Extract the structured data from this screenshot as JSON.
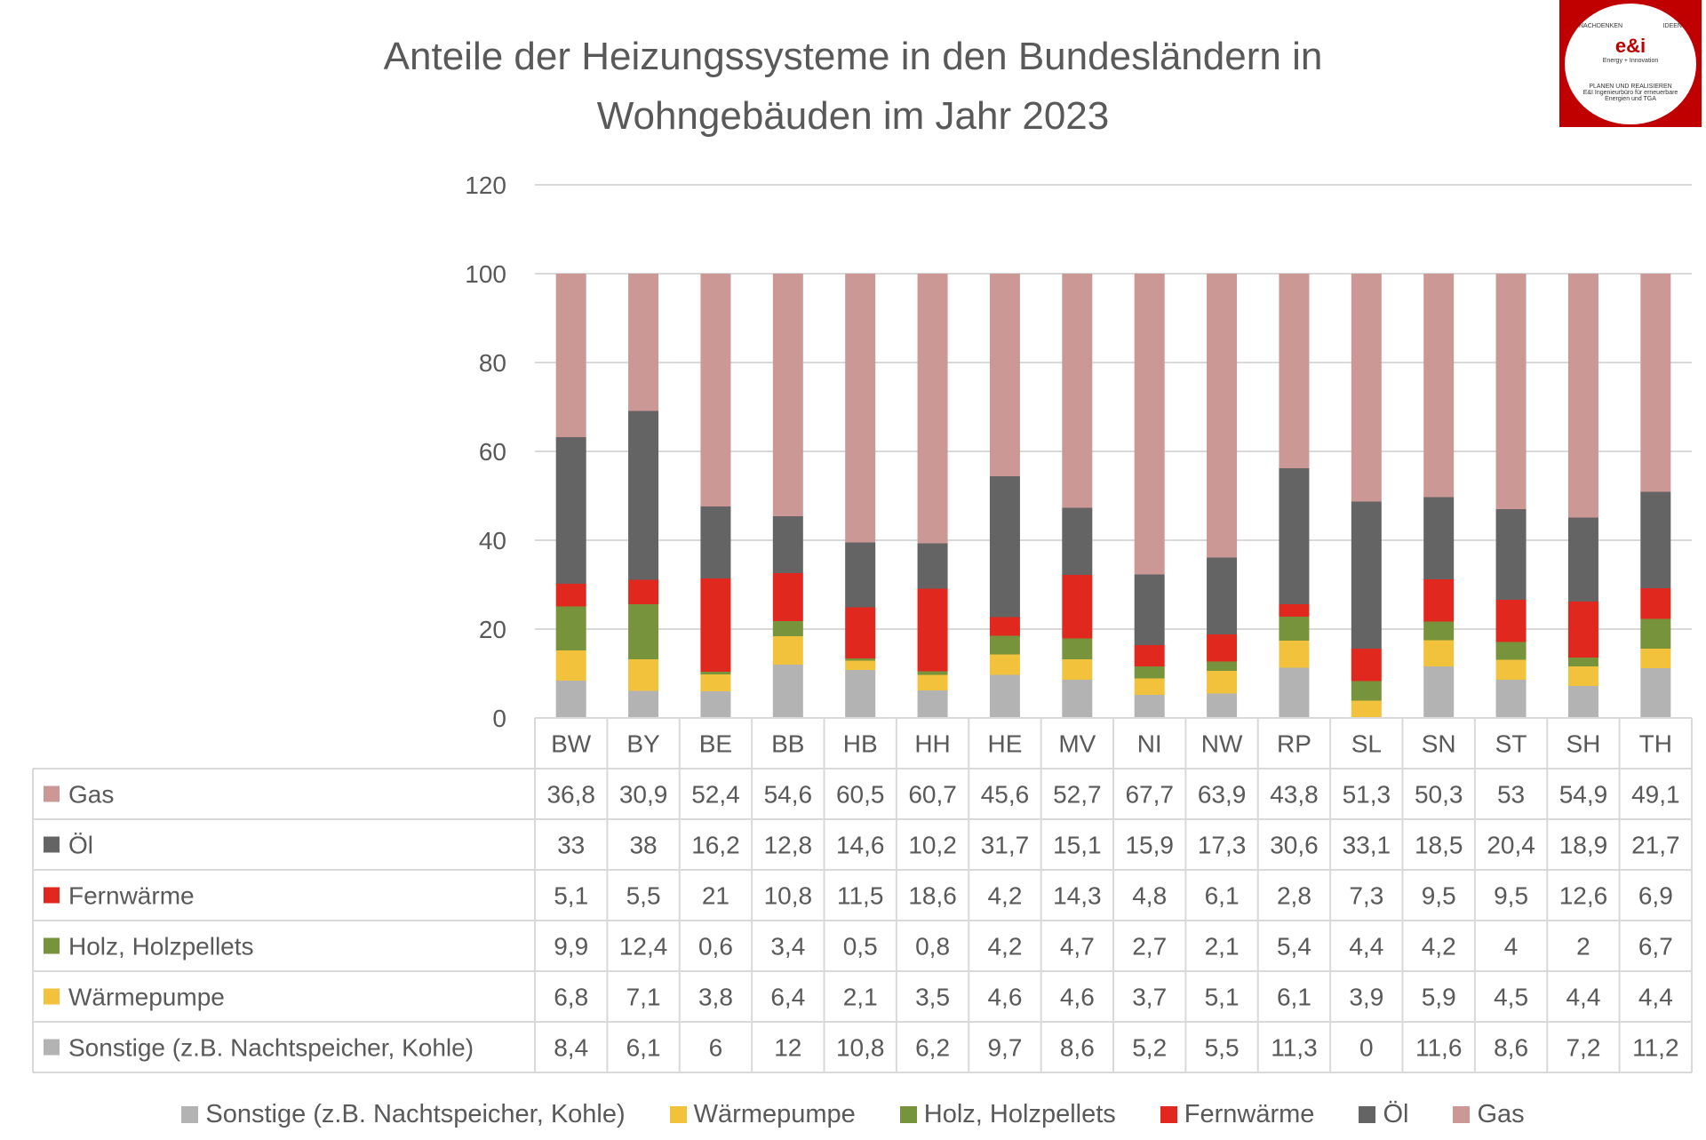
{
  "logo": {
    "top_left": "NACHDENKEN",
    "top_right": "IDEEN",
    "brand": "e&i",
    "tagline": "Energy + Innovation",
    "line1": "PLANEN UND REALISIEREN",
    "line2": "E&I Ingenieurbüro für erneuerbare Energien und TGA"
  },
  "chart_data": {
    "type": "bar",
    "stacked": true,
    "title": "Anteile der Heizungssysteme in den Bundesländern in Wohngebäuden im Jahr 2023",
    "title_lines": [
      "Anteile der Heizungssysteme in den Bundesländern in",
      "Wohngebäuden im Jahr 2023"
    ],
    "categories": [
      "BW",
      "BY",
      "BE",
      "BB",
      "HB",
      "HH",
      "HE",
      "MV",
      "NI",
      "NW",
      "RP",
      "SL",
      "SN",
      "ST",
      "SH",
      "TH"
    ],
    "ylim": [
      0,
      120
    ],
    "yticks": [
      "0",
      "20",
      "40",
      "60",
      "80",
      "100",
      "120"
    ],
    "grid": true,
    "legend_position": "bottom",
    "data_table": true,
    "series": [
      {
        "name": "Sonstige (z.B. Nachtspeicher, Kohle)",
        "color": "#b3b3b3",
        "values": [
          8.4,
          6.1,
          6,
          12,
          10.8,
          6.2,
          9.7,
          8.6,
          5.2,
          5.5,
          11.3,
          0,
          11.6,
          8.6,
          7.2,
          11.2
        ],
        "labels": [
          "8,4",
          "6,1",
          "6",
          "12",
          "10,8",
          "6,2",
          "9,7",
          "8,6",
          "5,2",
          "5,5",
          "11,3",
          "0",
          "11,6",
          "8,6",
          "7,2",
          "11,2"
        ]
      },
      {
        "name": "Wärmepumpe",
        "color": "#f2c23c",
        "values": [
          6.8,
          7.1,
          3.8,
          6.4,
          2.1,
          3.5,
          4.6,
          4.6,
          3.7,
          5.1,
          6.1,
          3.9,
          5.9,
          4.5,
          4.4,
          4.4
        ],
        "labels": [
          "6,8",
          "7,1",
          "3,8",
          "6,4",
          "2,1",
          "3,5",
          "4,6",
          "4,6",
          "3,7",
          "5,1",
          "6,1",
          "3,9",
          "5,9",
          "4,5",
          "4,4",
          "4,4"
        ]
      },
      {
        "name": "Holz, Holzpellets",
        "color": "#77933c",
        "values": [
          9.9,
          12.4,
          0.6,
          3.4,
          0.5,
          0.8,
          4.2,
          4.7,
          2.7,
          2.1,
          5.4,
          4.4,
          4.2,
          4,
          2,
          6.7
        ],
        "labels": [
          "9,9",
          "12,4",
          "0,6",
          "3,4",
          "0,5",
          "0,8",
          "4,2",
          "4,7",
          "2,7",
          "2,1",
          "5,4",
          "4,4",
          "4,2",
          "4",
          "2",
          "6,7"
        ]
      },
      {
        "name": "Fernwärme",
        "color": "#e0281e",
        "values": [
          5.1,
          5.5,
          21,
          10.8,
          11.5,
          18.6,
          4.2,
          14.3,
          4.8,
          6.1,
          2.8,
          7.3,
          9.5,
          9.5,
          12.6,
          6.9
        ],
        "labels": [
          "5,1",
          "5,5",
          "21",
          "10,8",
          "11,5",
          "18,6",
          "4,2",
          "14,3",
          "4,8",
          "6,1",
          "2,8",
          "7,3",
          "9,5",
          "9,5",
          "12,6",
          "6,9"
        ]
      },
      {
        "name": "Öl",
        "color": "#646464",
        "values": [
          33,
          38,
          16.2,
          12.8,
          14.6,
          10.2,
          31.7,
          15.1,
          15.9,
          17.3,
          30.6,
          33.1,
          18.5,
          20.4,
          18.9,
          21.7
        ],
        "labels": [
          "33",
          "38",
          "16,2",
          "12,8",
          "14,6",
          "10,2",
          "31,7",
          "15,1",
          "15,9",
          "17,3",
          "30,6",
          "33,1",
          "18,5",
          "20,4",
          "18,9",
          "21,7"
        ]
      },
      {
        "name": "Gas",
        "color": "#cc9895",
        "values": [
          36.8,
          30.9,
          52.4,
          54.6,
          60.5,
          60.7,
          45.6,
          52.7,
          67.7,
          63.9,
          43.8,
          51.3,
          50.3,
          53,
          54.9,
          49.1
        ],
        "labels": [
          "36,8",
          "30,9",
          "52,4",
          "54,6",
          "60,5",
          "60,7",
          "45,6",
          "52,7",
          "67,7",
          "63,9",
          "43,8",
          "51,3",
          "50,3",
          "53",
          "54,9",
          "49,1"
        ]
      }
    ]
  }
}
